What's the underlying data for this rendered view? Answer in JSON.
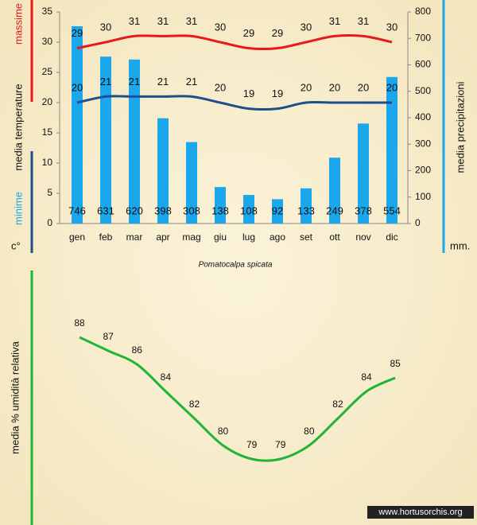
{
  "chart_data": [
    {
      "type": "bar",
      "title": "Pomatocalpa spicata",
      "ylabel": "media  temperature",
      "yunit": "c°",
      "y2label": "media  precipitazioni",
      "y2unit": "mm.",
      "categories": [
        "gen",
        "feb",
        "mar",
        "apr",
        "mag",
        "giu",
        "lug",
        "ago",
        "set",
        "ott",
        "nov",
        "dic"
      ],
      "ylim": [
        0,
        35
      ],
      "yticks": [
        0,
        5,
        10,
        15,
        20,
        25,
        30,
        35
      ],
      "y2lim": [
        0,
        800
      ],
      "y2ticks": [
        0,
        100,
        200,
        300,
        400,
        500,
        600,
        700,
        800
      ],
      "series": [
        {
          "kind": "bar",
          "axis": "y2",
          "color": "#1aa7ec",
          "values": [
            746,
            631,
            620,
            398,
            308,
            138,
            108,
            92,
            133,
            249,
            378,
            554
          ]
        },
        {
          "name": "massime",
          "kind": "line",
          "color": "#e8191c",
          "values": [
            29,
            30,
            31,
            31,
            31,
            30,
            29,
            29,
            30,
            31,
            31,
            30
          ]
        },
        {
          "name": "minime",
          "kind": "line",
          "color": "#1f4e8c",
          "values": [
            20,
            21,
            21,
            21,
            21,
            20,
            19,
            19,
            20,
            20,
            20,
            20
          ]
        }
      ]
    },
    {
      "type": "line",
      "ylabel": "media %  umidità relativa",
      "color": "#1db53a",
      "ylim": [
        76,
        90
      ],
      "values": [
        88,
        87,
        86,
        84,
        82,
        80,
        79,
        79,
        80,
        82,
        84,
        85
      ]
    }
  ],
  "watermark": "www.hortusorchis.org"
}
